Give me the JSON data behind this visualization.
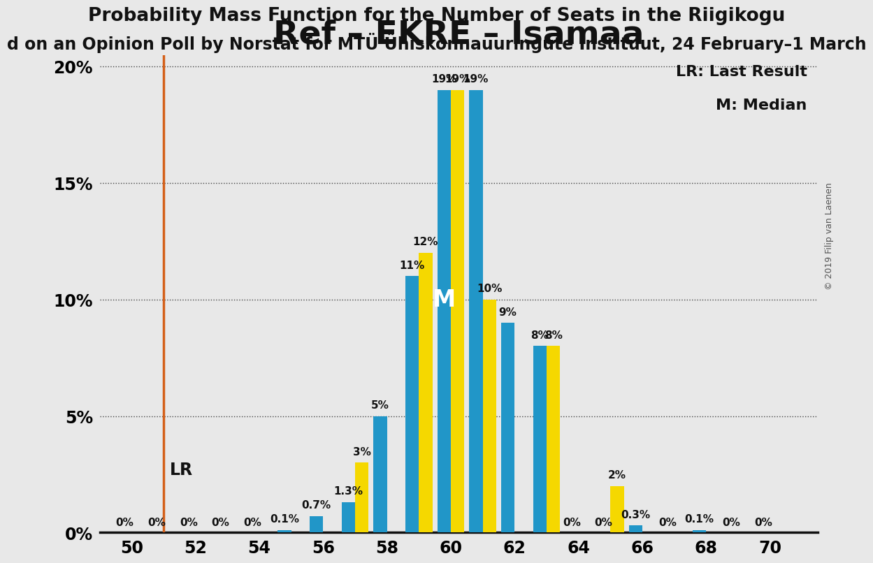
{
  "title": "Ref – EKRE – Isamaa",
  "subtitle": "Probability Mass Function for the Number of Seats in the Riigikogu",
  "subtitle2": "d on an Opinion Poll by Norstat for MTÜ Ühiskonnauuringute Instituut, 24 February–1 March",
  "seats": [
    50,
    51,
    52,
    53,
    54,
    55,
    56,
    57,
    58,
    59,
    60,
    61,
    62,
    63,
    64,
    65,
    66,
    67,
    68,
    69,
    70
  ],
  "blue_values": [
    0.0,
    0.0,
    0.0,
    0.0,
    0.0,
    0.1,
    0.7,
    1.3,
    5.0,
    11.0,
    19.0,
    19.0,
    9.0,
    8.0,
    0.0,
    0.0,
    0.3,
    0.0,
    0.1,
    0.0,
    0.0
  ],
  "yellow_values": [
    0.0,
    0.0,
    0.0,
    0.0,
    0.0,
    0.0,
    0.0,
    3.0,
    0.0,
    12.0,
    19.0,
    10.0,
    0.0,
    8.0,
    0.0,
    2.0,
    0.0,
    0.0,
    0.0,
    0.0,
    0.0
  ],
  "blue_color": "#2196C8",
  "yellow_color": "#F5D800",
  "lr_x": 51.0,
  "lr_color": "#D4601A",
  "median_seat": 60,
  "median_label": "M",
  "background_color": "#E8E8E8",
  "title_fontsize": 34,
  "subtitle_fontsize": 19,
  "subtitle2_fontsize": 17,
  "ylim": [
    0,
    20.5
  ],
  "yticks": [
    0,
    5,
    10,
    15,
    20
  ],
  "xlim_left": 49.0,
  "xlim_right": 71.5,
  "copyright_text": "© 2019 Filip van Laenen",
  "legend_lr": "LR: Last Result",
  "legend_m": "M: Median",
  "bar_width": 0.85,
  "label_fontsize": 11,
  "axis_fontsize": 17
}
